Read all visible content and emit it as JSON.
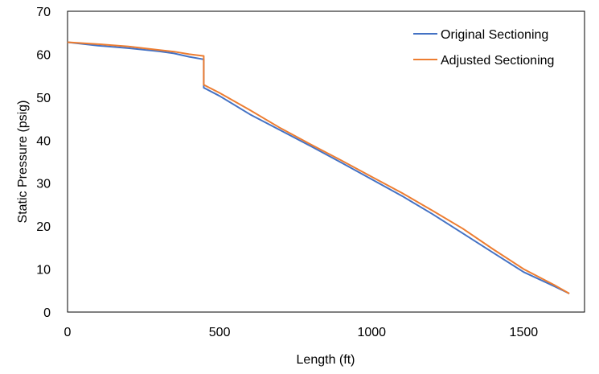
{
  "chart_data": {
    "type": "line",
    "title": "",
    "xlabel": "Length (ft)",
    "ylabel": "Static Pressure (psig)",
    "xlim": [
      0,
      1700
    ],
    "ylim": [
      0,
      70
    ],
    "x_ticks": [
      "0",
      "500",
      "1000",
      "1500"
    ],
    "y_ticks": [
      "0",
      "10",
      "20",
      "30",
      "40",
      "50",
      "60",
      "70"
    ],
    "grid": false,
    "legend_position": "top-right",
    "series": [
      {
        "name": "Original Sectioning",
        "color": "#4472C4",
        "points": [
          [
            0,
            62.8
          ],
          [
            100,
            62.0
          ],
          [
            200,
            61.4
          ],
          [
            300,
            60.7
          ],
          [
            350,
            60.2
          ],
          [
            400,
            59.4
          ],
          [
            448,
            58.8
          ],
          [
            448,
            52.2
          ],
          [
            500,
            50.3
          ],
          [
            600,
            46.0
          ],
          [
            700,
            42.3
          ],
          [
            800,
            38.6
          ],
          [
            900,
            34.8
          ],
          [
            1000,
            30.9
          ],
          [
            1100,
            27.0
          ],
          [
            1200,
            22.8
          ],
          [
            1300,
            18.3
          ],
          [
            1400,
            13.8
          ],
          [
            1500,
            9.3
          ],
          [
            1600,
            6.0
          ],
          [
            1650,
            4.3
          ]
        ]
      },
      {
        "name": "Adjusted Sectioning",
        "color": "#ED7D31",
        "points": [
          [
            0,
            62.8
          ],
          [
            110,
            62.3
          ],
          [
            200,
            61.8
          ],
          [
            300,
            61.0
          ],
          [
            350,
            60.6
          ],
          [
            400,
            60.0
          ],
          [
            448,
            59.6
          ],
          [
            448,
            52.9
          ],
          [
            500,
            51.0
          ],
          [
            600,
            47.0
          ],
          [
            700,
            42.8
          ],
          [
            800,
            39.0
          ],
          [
            900,
            35.3
          ],
          [
            1000,
            31.5
          ],
          [
            1100,
            27.7
          ],
          [
            1200,
            23.6
          ],
          [
            1300,
            19.4
          ],
          [
            1400,
            14.6
          ],
          [
            1500,
            10.0
          ],
          [
            1600,
            6.3
          ],
          [
            1650,
            4.3
          ]
        ]
      }
    ]
  }
}
